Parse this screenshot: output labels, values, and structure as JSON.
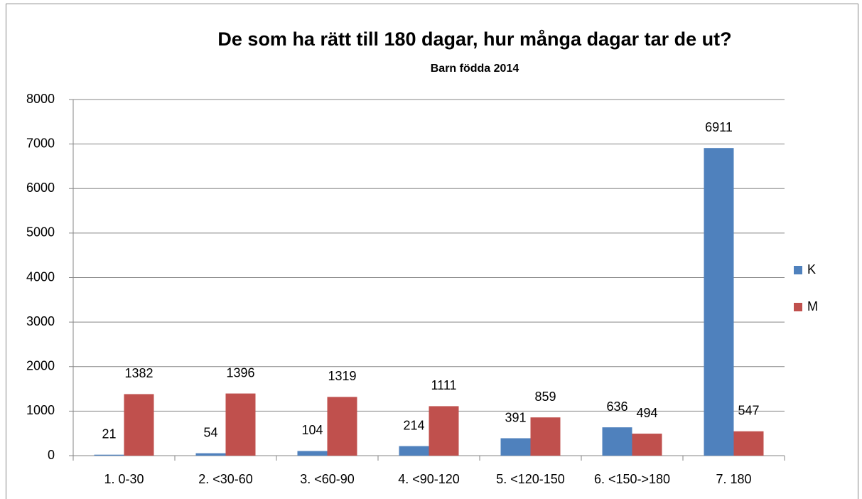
{
  "chart_data": {
    "type": "bar",
    "title": "De som ha rätt till 180 dagar, hur många dagar tar de ut?",
    "subtitle": "Barn födda 2014",
    "categories": [
      "1. 0-30",
      "2. <30-60",
      "3. <60-90",
      "4. <90-120",
      "5. <120-150",
      "6. <150->180",
      "7. 180"
    ],
    "series": [
      {
        "name": "K",
        "color": "#4f81bd",
        "values": [
          21,
          54,
          104,
          214,
          391,
          636,
          6911
        ]
      },
      {
        "name": "M",
        "color": "#c0504d",
        "values": [
          1382,
          1396,
          1319,
          1111,
          859,
          494,
          547
        ]
      }
    ],
    "ylim": [
      0,
      8000
    ],
    "yticks": [
      0,
      1000,
      2000,
      3000,
      4000,
      5000,
      6000,
      7000,
      8000
    ],
    "grid": true,
    "legend": "right"
  }
}
